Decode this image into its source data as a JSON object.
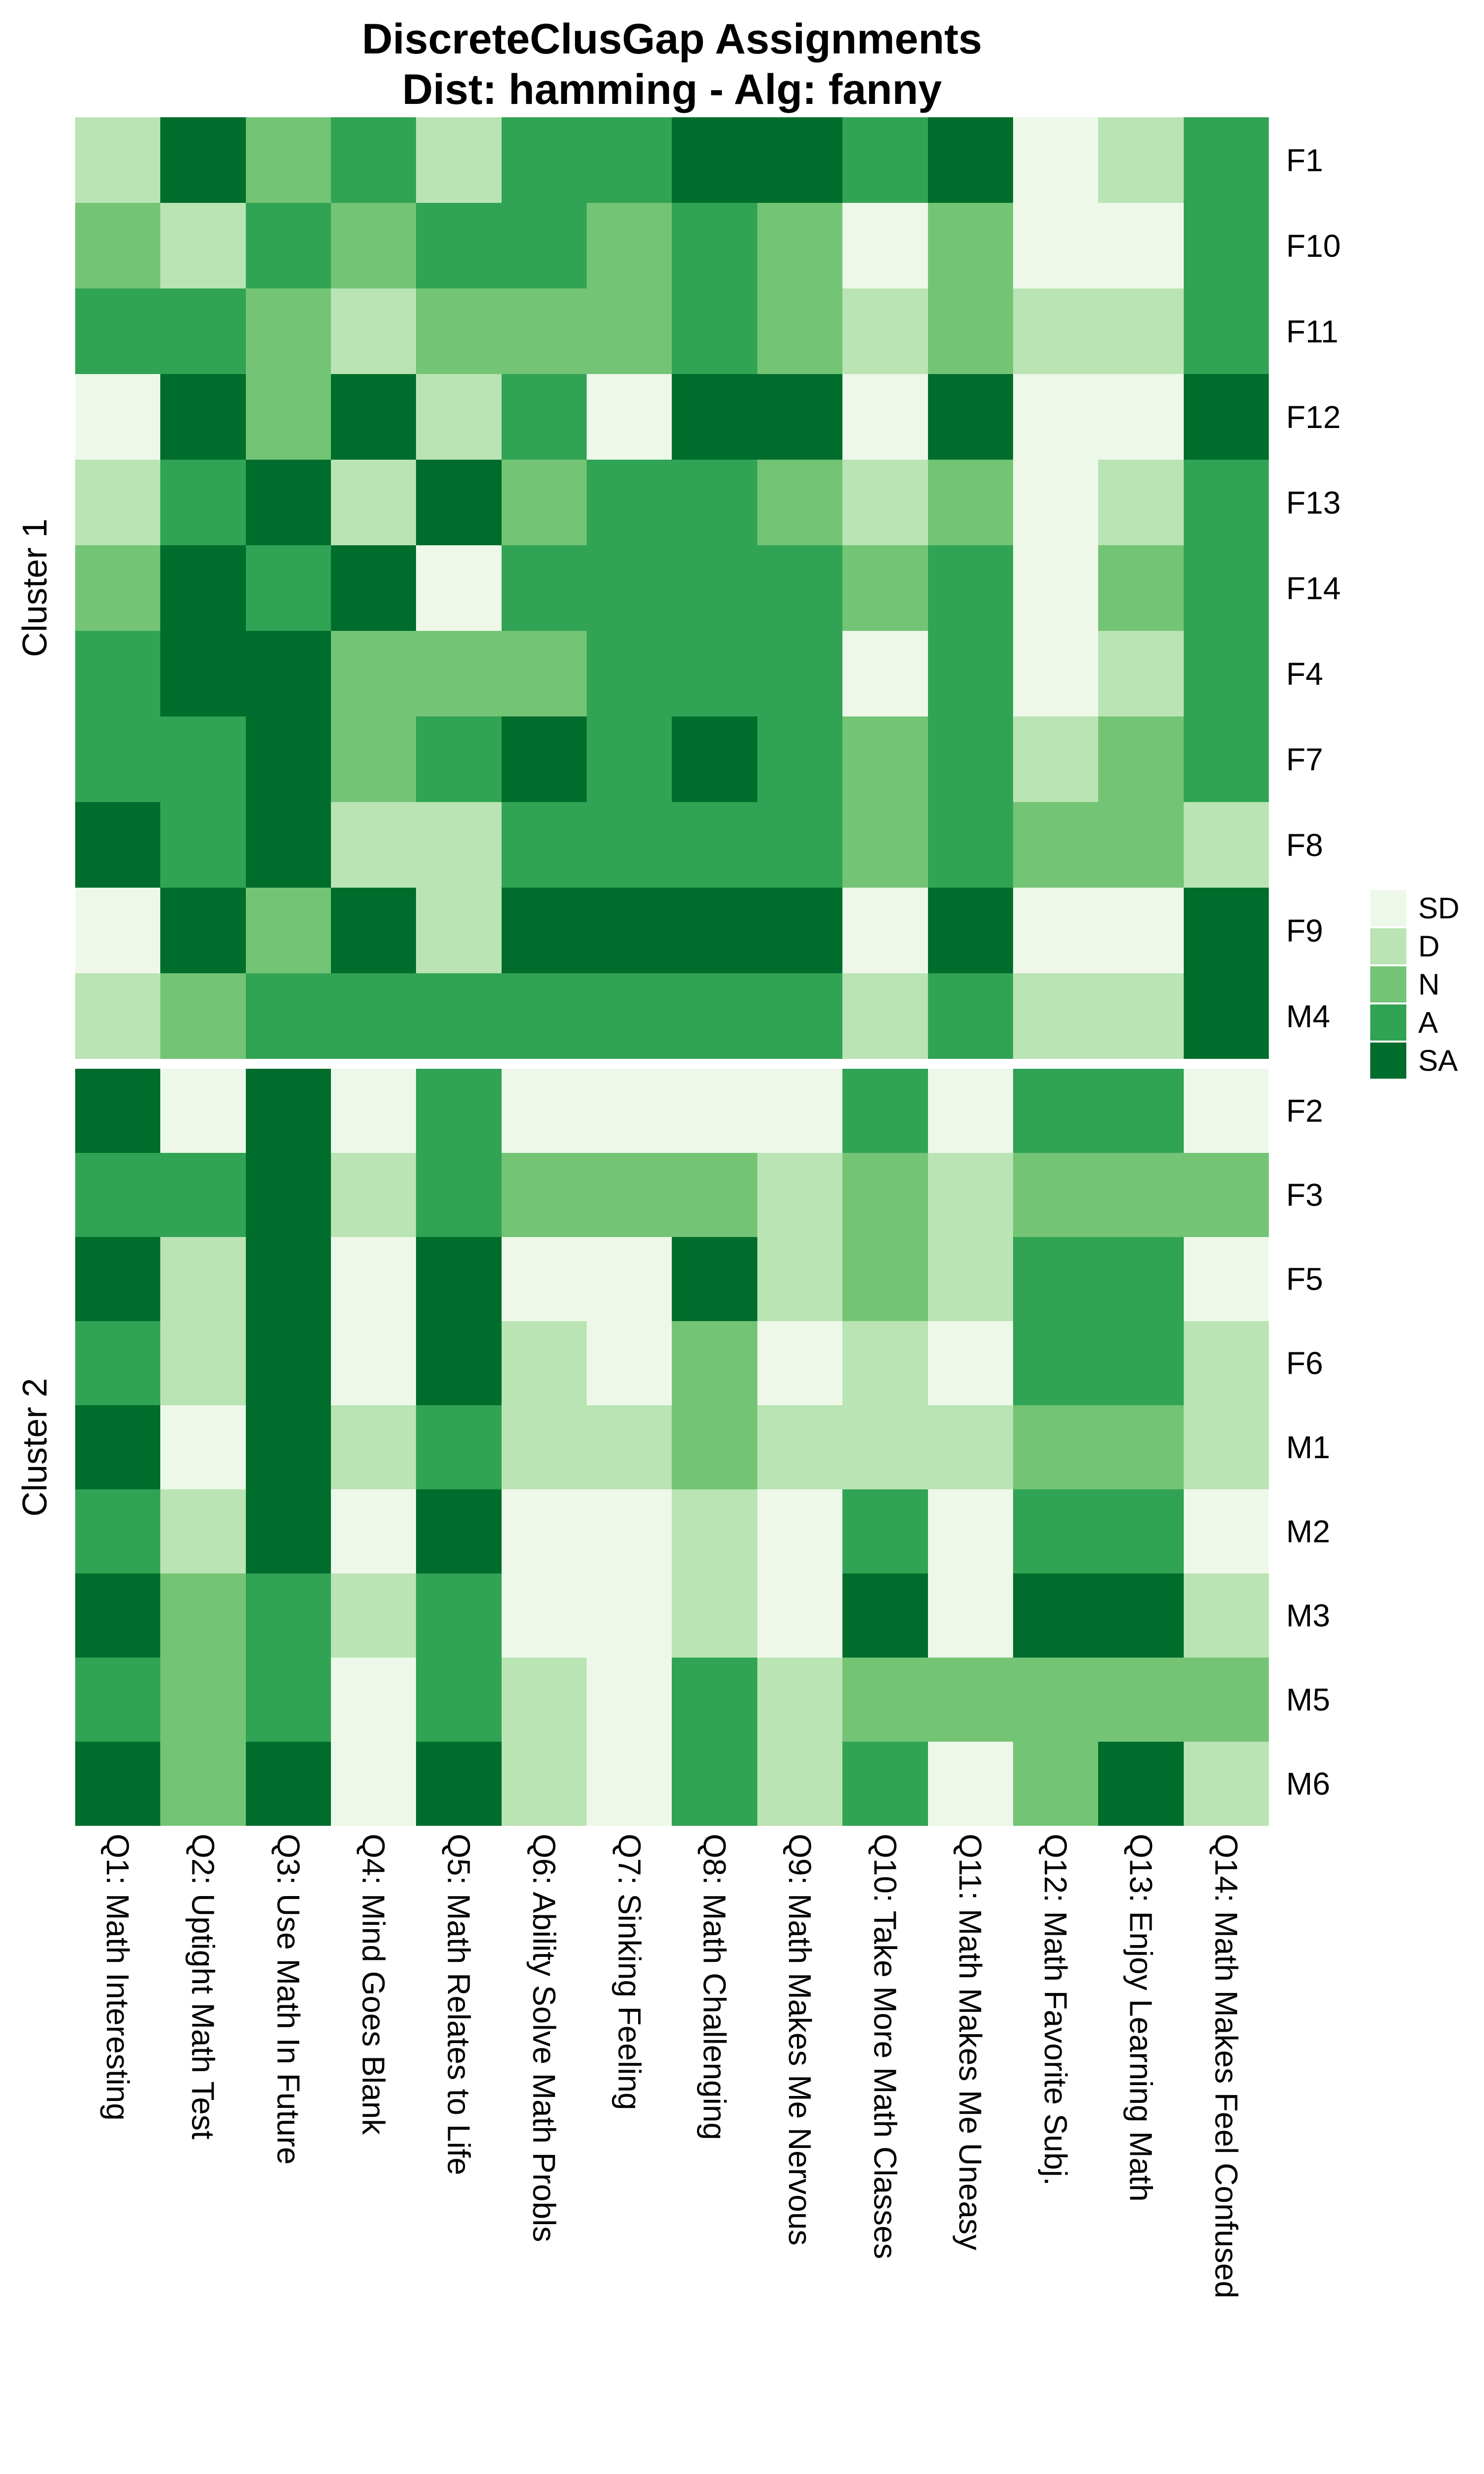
{
  "title": {
    "line1": "DiscreteClusGap Assignments",
    "line2": "Dist: hamming - Alg: fanny"
  },
  "legend": {
    "position": "right",
    "items": [
      {
        "label": "SD",
        "color": "#EDF8E9"
      },
      {
        "label": "D",
        "color": "#BAE4B3"
      },
      {
        "label": "N",
        "color": "#74C476"
      },
      {
        "label": "A",
        "color": "#31A354"
      },
      {
        "label": "SA",
        "color": "#006D2C"
      }
    ]
  },
  "chart_data": {
    "type": "heatmap",
    "title": "DiscreteClusGap Assignments",
    "subtitle": "Dist: hamming - Alg: fanny",
    "legend_position": "right",
    "grid": "off",
    "levels": [
      "SD",
      "D",
      "N",
      "A",
      "SA"
    ],
    "colors": {
      "SD": "#EDF8E9",
      "D": "#BAE4B3",
      "N": "#74C476",
      "A": "#31A354",
      "SA": "#006D2C"
    },
    "columns": [
      "Q1: Math Interesting",
      "Q2: Uptight Math Test",
      "Q3: Use Math In Future",
      "Q4: Mind Goes Blank",
      "Q5: Math Relates to Life",
      "Q6: Ability Solve Math Probls",
      "Q7: Sinking Feeling",
      "Q8: Math Challenging",
      "Q9: Math Makes Me Nervous",
      "Q10: Take More Math Classes",
      "Q11: Math Makes Me Uneasy",
      "Q12: Math Favorite Subj.",
      "Q13: Enjoy Learning Math",
      "Q14: Math Makes Feel Confused"
    ],
    "clusters": [
      {
        "name": "Cluster 1",
        "rows": [
          {
            "label": "F1",
            "values": [
              "D",
              "SA",
              "N",
              "A",
              "D",
              "A",
              "A",
              "SA",
              "SA",
              "A",
              "SA",
              "SD",
              "D",
              "A"
            ]
          },
          {
            "label": "F10",
            "values": [
              "N",
              "D",
              "A",
              "N",
              "A",
              "A",
              "N",
              "A",
              "N",
              "SD",
              "N",
              "SD",
              "SD",
              "A"
            ]
          },
          {
            "label": "F11",
            "values": [
              "A",
              "A",
              "N",
              "D",
              "N",
              "N",
              "N",
              "A",
              "N",
              "D",
              "N",
              "D",
              "D",
              "A"
            ]
          },
          {
            "label": "F12",
            "values": [
              "SD",
              "SA",
              "N",
              "SA",
              "D",
              "A",
              "SD",
              "SA",
              "SA",
              "SD",
              "SA",
              "SD",
              "SD",
              "SA"
            ]
          },
          {
            "label": "F13",
            "values": [
              "D",
              "A",
              "SA",
              "D",
              "SA",
              "N",
              "A",
              "A",
              "N",
              "D",
              "N",
              "SD",
              "D",
              "A"
            ]
          },
          {
            "label": "F14",
            "values": [
              "N",
              "SA",
              "A",
              "SA",
              "SD",
              "A",
              "A",
              "A",
              "A",
              "N",
              "A",
              "SD",
              "N",
              "A"
            ]
          },
          {
            "label": "F4",
            "values": [
              "A",
              "SA",
              "SA",
              "N",
              "N",
              "N",
              "A",
              "A",
              "A",
              "SD",
              "A",
              "SD",
              "D",
              "A"
            ]
          },
          {
            "label": "F7",
            "values": [
              "A",
              "A",
              "SA",
              "N",
              "A",
              "SA",
              "A",
              "SA",
              "A",
              "N",
              "A",
              "D",
              "N",
              "A"
            ]
          },
          {
            "label": "F8",
            "values": [
              "SA",
              "A",
              "SA",
              "D",
              "D",
              "A",
              "A",
              "A",
              "A",
              "N",
              "A",
              "N",
              "N",
              "D"
            ]
          },
          {
            "label": "F9",
            "values": [
              "SD",
              "SA",
              "N",
              "SA",
              "D",
              "SA",
              "SA",
              "SA",
              "SA",
              "SD",
              "SA",
              "SD",
              "SD",
              "SA"
            ]
          },
          {
            "label": "M4",
            "values": [
              "D",
              "N",
              "A",
              "A",
              "A",
              "A",
              "A",
              "A",
              "A",
              "D",
              "A",
              "D",
              "D",
              "SA"
            ]
          }
        ]
      },
      {
        "name": "Cluster 2",
        "rows": [
          {
            "label": "F2",
            "values": [
              "SA",
              "SD",
              "SA",
              "SD",
              "A",
              "SD",
              "SD",
              "SD",
              "SD",
              "A",
              "SD",
              "A",
              "A",
              "SD"
            ]
          },
          {
            "label": "F3",
            "values": [
              "A",
              "A",
              "SA",
              "D",
              "A",
              "N",
              "N",
              "N",
              "D",
              "N",
              "D",
              "N",
              "N",
              "N"
            ]
          },
          {
            "label": "F5",
            "values": [
              "SA",
              "D",
              "SA",
              "SD",
              "SA",
              "SD",
              "SD",
              "SA",
              "D",
              "N",
              "D",
              "A",
              "A",
              "SD"
            ]
          },
          {
            "label": "F6",
            "values": [
              "A",
              "D",
              "SA",
              "SD",
              "SA",
              "D",
              "SD",
              "N",
              "SD",
              "D",
              "SD",
              "A",
              "A",
              "D"
            ]
          },
          {
            "label": "M1",
            "values": [
              "SA",
              "SD",
              "SA",
              "D",
              "A",
              "D",
              "D",
              "N",
              "D",
              "D",
              "D",
              "N",
              "N",
              "D"
            ]
          },
          {
            "label": "M2",
            "values": [
              "A",
              "D",
              "SA",
              "SD",
              "SA",
              "SD",
              "SD",
              "D",
              "SD",
              "A",
              "SD",
              "A",
              "A",
              "SD"
            ]
          },
          {
            "label": "M3",
            "values": [
              "SA",
              "N",
              "A",
              "D",
              "A",
              "SD",
              "SD",
              "D",
              "SD",
              "SA",
              "SD",
              "SA",
              "SA",
              "D"
            ]
          },
          {
            "label": "M5",
            "values": [
              "A",
              "N",
              "A",
              "SD",
              "A",
              "D",
              "SD",
              "A",
              "D",
              "N",
              "N",
              "N",
              "N",
              "N"
            ]
          },
          {
            "label": "M6",
            "values": [
              "SA",
              "N",
              "SA",
              "SD",
              "SA",
              "D",
              "SD",
              "A",
              "D",
              "A",
              "SD",
              "N",
              "SA",
              "D"
            ]
          }
        ]
      }
    ]
  }
}
